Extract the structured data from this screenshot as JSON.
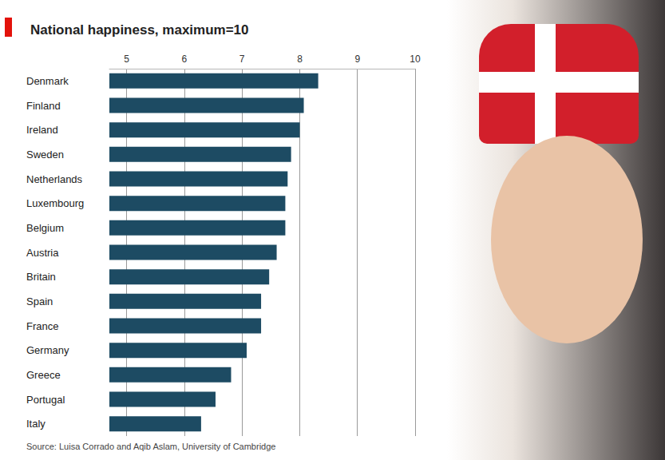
{
  "chart_data": {
    "type": "bar",
    "orientation": "horizontal",
    "title": "National happiness, maximum=10",
    "source": "Source: Luisa Corrado and Aqib Aslam, University of Cambridge",
    "categories": [
      "Denmark",
      "Finland",
      "Ireland",
      "Sweden",
      "Netherlands",
      "Luxembourg",
      "Belgium",
      "Austria",
      "Britain",
      "Spain",
      "France",
      "Germany",
      "Greece",
      "Portugal",
      "Italy"
    ],
    "values": [
      8.32,
      8.07,
      8.0,
      7.85,
      7.79,
      7.75,
      7.75,
      7.6,
      7.47,
      7.33,
      7.33,
      7.08,
      6.81,
      6.54,
      6.29
    ],
    "color": "#1d4b63",
    "xlim": [
      4.7,
      10
    ],
    "xticks": [
      5,
      6,
      7,
      8,
      9,
      10
    ],
    "grid": true
  }
}
